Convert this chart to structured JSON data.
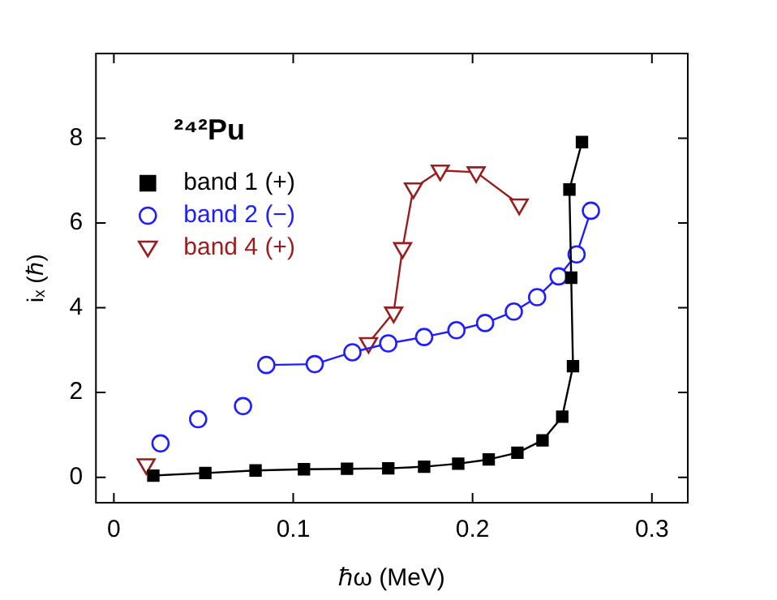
{
  "chart_data": {
    "type": "line",
    "title": "²⁴²Pu",
    "xlabel": "ℏω (MeV)",
    "ylabel": "iₓ (ℏ)",
    "xlim": [
      -0.01,
      0.32
    ],
    "xticks": [
      0,
      0.1,
      0.2,
      0.3
    ],
    "ylim": [
      -0.6,
      10
    ],
    "yticks": [
      0,
      2,
      4,
      6,
      8
    ],
    "grid": false,
    "legend": "top left",
    "series": [
      {
        "name": "band 1 (+)",
        "color": "#000000",
        "marker": "square",
        "x": [
          0.022,
          0.051,
          0.079,
          0.106,
          0.13,
          0.153,
          0.173,
          0.192,
          0.209,
          0.225,
          0.239,
          0.25,
          0.256,
          0.255,
          0.254,
          0.261
        ],
        "values": [
          0.04,
          0.1,
          0.16,
          0.19,
          0.2,
          0.21,
          0.25,
          0.32,
          0.42,
          0.58,
          0.87,
          1.43,
          2.62,
          4.71,
          6.79,
          7.91
        ]
      },
      {
        "name": "band 2 (−)",
        "color": "#1e1eff",
        "marker": "circle",
        "x": [
          0.085,
          0.112,
          0.133,
          0.153,
          0.173,
          0.191,
          0.207,
          0.223,
          0.236,
          0.248,
          0.258,
          0.266
        ],
        "values": [
          2.65,
          2.67,
          2.95,
          3.16,
          3.31,
          3.47,
          3.64,
          3.91,
          4.25,
          4.74,
          5.26,
          6.29
        ]
      },
      {
        "type": "scatter",
        "color": "#1e1eff",
        "marker": "circle",
        "x": [
          0.026,
          0.047,
          0.072
        ],
        "values": [
          0.8,
          1.37,
          1.68
        ]
      },
      {
        "name": "band 4 (+)",
        "color": "#9b1c1c",
        "marker": "triangle",
        "x": [
          0.142,
          0.156,
          0.161,
          0.167,
          0.182,
          0.202,
          0.226
        ],
        "values": [
          3.17,
          3.89,
          5.41,
          6.82,
          7.24,
          7.2,
          6.44
        ]
      },
      {
        "type": "scatter",
        "color": "#9b1c1c",
        "marker": "triangle",
        "x": [
          0.018
        ],
        "values": [
          0.31
        ]
      }
    ]
  }
}
